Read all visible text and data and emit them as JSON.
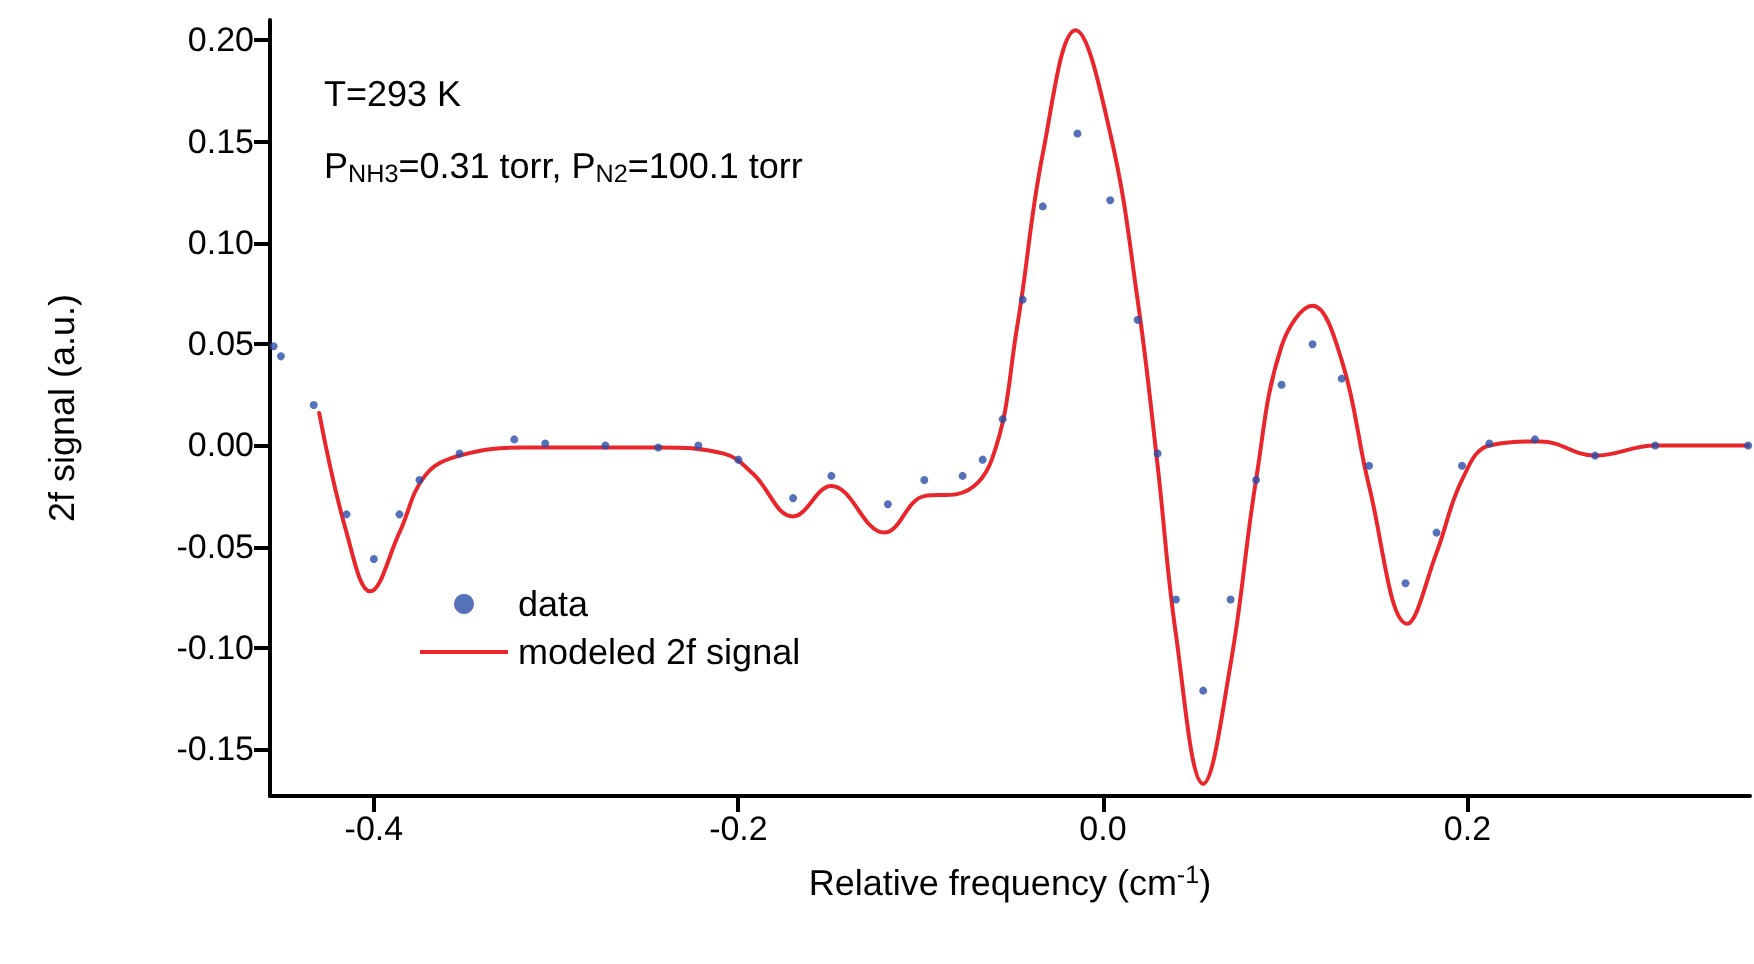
{
  "chart_data": {
    "type": "scatter",
    "xlabel": "Relative frequency (cm$^{-1}$)",
    "ylabel": "2f signal (a.u.)",
    "annotations": [
      "T=293 K",
      "P$_{NH3}$=0.31 torr, P$_{N2}$=100.1 torr"
    ],
    "xlim": [
      -0.457,
      0.355
    ],
    "ylim": [
      -0.173,
      0.21
    ],
    "xticks": [
      -0.4,
      -0.2,
      {
        "value": 0,
        "label": "0.0"
      },
      0.2
    ],
    "yticks": [
      {
        "value": -0.15,
        "label": "-0.15"
      },
      {
        "value": -0.1,
        "label": "-0.10"
      },
      {
        "value": -0.05,
        "label": "-0.05"
      },
      {
        "value": 0,
        "label": "0.00"
      },
      {
        "value": 0.05,
        "label": "0.05"
      },
      {
        "value": 0.1,
        "label": "0.10"
      },
      {
        "value": 0.15,
        "label": "0.15"
      },
      {
        "value": 0.2,
        "label": "0.20"
      }
    ],
    "grid": false,
    "legend": "bottom left",
    "series": [
      {
        "name": "data",
        "marker": "circle",
        "color": "#2b4ea8",
        "x": [
          -0.455,
          -0.451,
          -0.433,
          -0.415,
          -0.4,
          -0.386,
          -0.375,
          -0.353,
          -0.323,
          -0.306,
          -0.273,
          -0.244,
          -0.222,
          -0.2,
          -0.17,
          -0.149,
          -0.118,
          -0.098,
          -0.077,
          -0.066,
          -0.055,
          -0.044,
          -0.033,
          -0.014,
          0.004,
          0.019,
          0.03,
          0.04,
          0.055,
          0.07,
          0.084,
          0.098,
          0.115,
          0.131,
          0.146,
          0.166,
          0.183,
          0.197,
          0.212,
          0.237,
          0.27,
          0.303,
          0.354
        ],
        "values": [
          0.049,
          0.044,
          0.02,
          -0.034,
          -0.056,
          -0.034,
          -0.017,
          -0.004,
          0.003,
          0.001,
          0.0,
          -0.001,
          0.0,
          -0.007,
          -0.026,
          -0.015,
          -0.029,
          -0.017,
          -0.015,
          -0.007,
          0.013,
          0.072,
          0.118,
          0.154,
          0.121,
          0.062,
          -0.004,
          -0.076,
          -0.121,
          -0.076,
          -0.017,
          0.03,
          0.05,
          0.033,
          -0.01,
          -0.068,
          -0.043,
          -0.01,
          0.001,
          0.003,
          -0.005,
          0.0,
          0.0
        ]
      },
      {
        "name": "modeled 2f signal",
        "type": "line",
        "marker": "none",
        "line_style": "solid",
        "color": "#e8262b",
        "x": [
          -0.43,
          -0.415,
          -0.402,
          -0.386,
          -0.372,
          -0.353,
          -0.317,
          -0.244,
          -0.208,
          -0.192,
          -0.17,
          -0.149,
          -0.12,
          -0.098,
          -0.08,
          -0.061,
          -0.047,
          -0.033,
          -0.015,
          0.004,
          0.019,
          0.03,
          0.04,
          0.055,
          0.07,
          0.084,
          0.098,
          0.115,
          0.131,
          0.146,
          0.167,
          0.183,
          0.197,
          0.212,
          0.24,
          0.27,
          0.303,
          0.354
        ],
        "values": [
          0.016,
          -0.043,
          -0.072,
          -0.043,
          -0.015,
          -0.005,
          -0.001,
          -0.001,
          -0.004,
          -0.014,
          -0.035,
          -0.02,
          -0.043,
          -0.025,
          -0.024,
          -0.007,
          0.059,
          0.144,
          0.205,
          0.154,
          0.072,
          -0.01,
          -0.093,
          -0.167,
          -0.108,
          -0.017,
          0.049,
          0.069,
          0.042,
          -0.02,
          -0.088,
          -0.053,
          -0.017,
          0.0,
          0.002,
          -0.005,
          0.0,
          0.0
        ]
      }
    ]
  }
}
